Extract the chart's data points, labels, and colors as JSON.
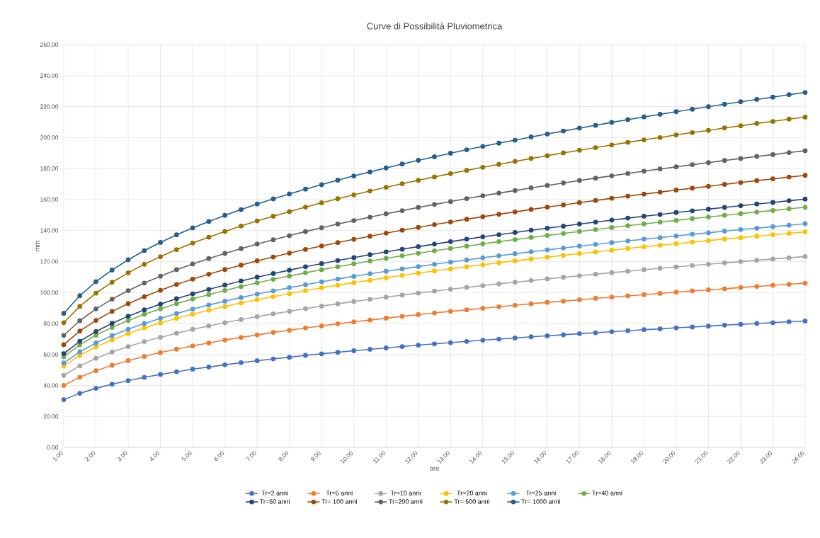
{
  "chart_data": {
    "type": "line",
    "title": "Curve di Possibilità Pluviometrica",
    "xlabel": "ore",
    "ylabel": "mm",
    "x": [
      1,
      1.5,
      2,
      2.5,
      3,
      3.5,
      4,
      4.5,
      5,
      5.5,
      6,
      6.5,
      7,
      7.5,
      8,
      8.5,
      9,
      9.5,
      10,
      10.5,
      11,
      11.5,
      12,
      12.5,
      13,
      13.5,
      14,
      14.5,
      15,
      15.5,
      16,
      16.5,
      17,
      17.5,
      18,
      18.5,
      19,
      19.5,
      20,
      20.5,
      21,
      21.5,
      22,
      22.5,
      23,
      23.5,
      24
    ],
    "xlim": [
      1,
      24
    ],
    "xticks": [
      {
        "value": 1,
        "label": "1.00"
      },
      {
        "value": 2,
        "label": "2.00"
      },
      {
        "value": 3,
        "label": "3.00"
      },
      {
        "value": 4,
        "label": "4.00"
      },
      {
        "value": 5,
        "label": "5.00"
      },
      {
        "value": 6,
        "label": "6.00"
      },
      {
        "value": 7,
        "label": "7.00"
      },
      {
        "value": 8,
        "label": "8.00"
      },
      {
        "value": 9,
        "label": "9.00"
      },
      {
        "value": 10,
        "label": "10.00"
      },
      {
        "value": 11,
        "label": "11.00"
      },
      {
        "value": 12,
        "label": "12.00"
      },
      {
        "value": 13,
        "label": "13.00"
      },
      {
        "value": 14,
        "label": "14.00"
      },
      {
        "value": 15,
        "label": "15.00"
      },
      {
        "value": 16,
        "label": "16.00"
      },
      {
        "value": 17,
        "label": "17.00"
      },
      {
        "value": 18,
        "label": "18.00"
      },
      {
        "value": 19,
        "label": "19.00"
      },
      {
        "value": 20,
        "label": "20.00"
      },
      {
        "value": 21,
        "label": "21.00"
      },
      {
        "value": 22,
        "label": "22.00"
      },
      {
        "value": 23,
        "label": "23.00"
      },
      {
        "value": 24,
        "label": "24.00"
      }
    ],
    "ylim": [
      0,
      260
    ],
    "yticks": [
      {
        "value": 0,
        "label": "0.00"
      },
      {
        "value": 20,
        "label": "20.00"
      },
      {
        "value": 40,
        "label": "40.00"
      },
      {
        "value": 60,
        "label": "60.00"
      },
      {
        "value": 80,
        "label": "80.00"
      },
      {
        "value": 100,
        "label": "100.00"
      },
      {
        "value": 120,
        "label": "120.00"
      },
      {
        "value": 140,
        "label": "140.00"
      },
      {
        "value": 160,
        "label": "160.00"
      },
      {
        "value": 180,
        "label": "180.00"
      },
      {
        "value": 200,
        "label": "200.00"
      },
      {
        "value": 220,
        "label": "220.00"
      },
      {
        "value": 240,
        "label": "240.00"
      },
      {
        "value": 260,
        "label": "260.00"
      }
    ],
    "grid": true,
    "legend": "bottom",
    "marker": "circle",
    "line_style": "solid",
    "series": [
      {
        "name": "Tr=2 anni",
        "color": "#4472c4",
        "values": [
          30.8,
          34.9,
          38.1,
          40.8,
          43.1,
          45.2,
          47.1,
          48.8,
          50.5,
          51.9,
          53.3,
          54.7,
          55.9,
          57.1,
          58.2,
          59.4,
          60.4,
          61.4,
          62.4,
          63.3,
          64.2,
          65.1,
          66.0,
          66.8,
          67.6,
          68.4,
          69.2,
          69.9,
          70.6,
          71.4,
          72.0,
          72.7,
          73.4,
          74.0,
          74.7,
          75.3,
          76.0,
          76.5,
          77.2,
          77.7,
          78.3,
          78.9,
          79.4,
          80.0,
          80.5,
          81.1,
          81.6
        ]
      },
      {
        "name": "Tr=5 anni",
        "color": "#ed7d31",
        "values": [
          40,
          45.3,
          49.5,
          53.0,
          56.0,
          58.7,
          61.2,
          63.4,
          65.5,
          67.4,
          69.3,
          71.0,
          72.6,
          74.2,
          75.6,
          77.1,
          78.4,
          79.8,
          81.0,
          82.2,
          83.4,
          84.6,
          85.7,
          86.8,
          87.8,
          88.8,
          89.8,
          90.8,
          91.7,
          92.7,
          93.6,
          94.4,
          95.3,
          96.2,
          97.0,
          97.8,
          98.6,
          99.4,
          100.2,
          101.0,
          101.7,
          102.4,
          103.2,
          103.9,
          104.6,
          105.3,
          106.0
        ]
      },
      {
        "name": "Tr=10 anni",
        "color": "#a5a5a5",
        "values": [
          46.5,
          52.6,
          57.5,
          61.6,
          65.1,
          68.3,
          71.1,
          73.7,
          76.2,
          78.4,
          80.5,
          82.5,
          84.4,
          86.2,
          87.9,
          89.6,
          91.2,
          92.7,
          94.2,
          95.6,
          97.0,
          98.3,
          99.6,
          100.9,
          102.1,
          103.3,
          104.4,
          105.6,
          106.6,
          107.7,
          108.8,
          109.8,
          110.8,
          111.8,
          112.8,
          113.7,
          114.7,
          115.6,
          116.5,
          117.4,
          118.2,
          119.1,
          119.9,
          120.8,
          121.6,
          122.4,
          123.2
        ]
      },
      {
        "name": "Tr=20 anni",
        "color": "#ffc000",
        "values": [
          52.5,
          59.4,
          64.9,
          69.5,
          73.5,
          77.1,
          80.3,
          83.3,
          86.0,
          88.5,
          90.9,
          93.2,
          95.3,
          97.3,
          99.3,
          101.2,
          103.0,
          104.7,
          106.3,
          107.9,
          109.5,
          111.0,
          112.5,
          113.9,
          115.2,
          116.6,
          117.9,
          119.2,
          120.4,
          121.6,
          122.8,
          124.0,
          125.1,
          126.2,
          127.3,
          128.4,
          129.5,
          130.5,
          131.5,
          132.5,
          133.5,
          134.5,
          135.4,
          136.3,
          137.2,
          138.2,
          139.1
        ]
      },
      {
        "name": "Tr=25 anni",
        "color": "#5b9bd5",
        "values": [
          54.5,
          61.7,
          67.4,
          72.2,
          76.3,
          80.0,
          83.3,
          86.4,
          89.3,
          91.9,
          94.4,
          96.7,
          99.0,
          101.0,
          103.1,
          105.0,
          106.9,
          108.7,
          110.4,
          112.1,
          113.7,
          115.2,
          116.7,
          118.2,
          119.6,
          121.0,
          122.4,
          123.7,
          125.0,
          126.3,
          127.5,
          128.7,
          129.9,
          131.0,
          132.2,
          133.3,
          134.4,
          135.4,
          136.5,
          137.6,
          138.5,
          139.6,
          140.6,
          141.5,
          142.5,
          143.4,
          144.4
        ]
      },
      {
        "name": "Tr=40 anni",
        "color": "#70ad47",
        "values": [
          58.5,
          66.2,
          72.4,
          77.5,
          81.9,
          85.9,
          89.4,
          92.8,
          95.8,
          98.6,
          101.3,
          103.8,
          106.2,
          108.5,
          110.6,
          112.7,
          114.7,
          116.6,
          118.5,
          120.3,
          122.0,
          123.7,
          125.3,
          126.9,
          128.4,
          129.9,
          131.4,
          132.8,
          134.1,
          135.5,
          136.8,
          138.1,
          139.4,
          140.6,
          141.9,
          143.1,
          144.3,
          145.4,
          146.5,
          147.7,
          148.7,
          149.8,
          150.9,
          151.9,
          152.9,
          154.0,
          155.0
        ]
      },
      {
        "name": "Tr=50 anni",
        "color": "#264478",
        "values": [
          60.5,
          68.5,
          74.8,
          80.1,
          84.7,
          88.8,
          92.5,
          96.0,
          99.1,
          102.0,
          104.8,
          107.4,
          109.9,
          112.2,
          114.4,
          116.6,
          118.6,
          120.6,
          122.5,
          124.4,
          126.2,
          127.9,
          129.6,
          131.2,
          132.8,
          134.4,
          135.9,
          137.3,
          138.7,
          140.2,
          141.5,
          142.8,
          144.2,
          145.4,
          146.7,
          148.0,
          149.2,
          150.3,
          151.6,
          152.7,
          153.8,
          154.9,
          156.0,
          157.1,
          158.1,
          159.2,
          160.3
        ]
      },
      {
        "name": "Tr= 100 anni",
        "color": "#9e480e",
        "values": [
          66.3,
          75.1,
          82.0,
          87.8,
          92.8,
          97.3,
          101.4,
          105.2,
          108.6,
          111.8,
          114.8,
          117.7,
          120.4,
          122.9,
          125.4,
          127.8,
          130.0,
          132.2,
          134.3,
          136.3,
          138.3,
          140.2,
          142.0,
          143.8,
          145.5,
          147.3,
          148.9,
          150.5,
          152.0,
          153.6,
          155.1,
          156.5,
          158.0,
          159.4,
          160.8,
          162.2,
          163.5,
          164.8,
          166.1,
          167.3,
          168.5,
          169.8,
          171.0,
          172.2,
          173.3,
          174.5,
          175.6
        ]
      },
      {
        "name": "Tr=200 anni",
        "color": "#636363",
        "values": [
          72.3,
          81.8,
          89.4,
          95.7,
          101.2,
          106.1,
          110.5,
          114.7,
          118.4,
          121.9,
          125.2,
          128.3,
          131.3,
          134.0,
          136.7,
          139.3,
          141.8,
          144.2,
          146.4,
          148.6,
          150.8,
          152.8,
          154.9,
          156.8,
          158.7,
          160.6,
          162.4,
          164.1,
          165.8,
          167.5,
          169.1,
          170.7,
          172.3,
          173.8,
          175.3,
          176.8,
          178.3,
          179.7,
          181.1,
          182.5,
          183.8,
          185.2,
          186.5,
          187.8,
          189.0,
          190.3,
          191.5
        ]
      },
      {
        "name": "Tr= 500 anni",
        "color": "#997300",
        "values": [
          80.5,
          91.1,
          99.6,
          106.6,
          112.7,
          118.2,
          123.1,
          127.7,
          131.9,
          135.7,
          139.4,
          142.9,
          146.2,
          149.2,
          152.2,
          155.1,
          157.9,
          160.5,
          163.0,
          165.5,
          167.9,
          170.2,
          172.4,
          174.6,
          176.7,
          178.8,
          180.8,
          182.7,
          184.6,
          186.5,
          188.3,
          190.1,
          191.8,
          193.5,
          195.2,
          196.9,
          198.5,
          200.0,
          201.7,
          203.2,
          204.6,
          206.2,
          207.6,
          209.1,
          210.4,
          211.9,
          213.2
        ]
      },
      {
        "name": "Tr= 1000 anni",
        "color": "#255e91",
        "values": [
          86.5,
          97.9,
          107.0,
          114.5,
          121.1,
          127.0,
          132.3,
          137.2,
          141.7,
          145.8,
          149.8,
          153.5,
          157.1,
          160.4,
          163.6,
          166.7,
          169.6,
          172.5,
          175.2,
          177.8,
          180.4,
          182.9,
          185.3,
          187.6,
          189.9,
          192.1,
          194.3,
          196.4,
          198.3,
          200.4,
          202.3,
          204.2,
          206.1,
          207.9,
          209.8,
          211.6,
          213.3,
          215.0,
          216.7,
          218.3,
          219.9,
          221.5,
          223.1,
          224.6,
          226.1,
          227.7,
          229.1
        ]
      }
    ]
  }
}
